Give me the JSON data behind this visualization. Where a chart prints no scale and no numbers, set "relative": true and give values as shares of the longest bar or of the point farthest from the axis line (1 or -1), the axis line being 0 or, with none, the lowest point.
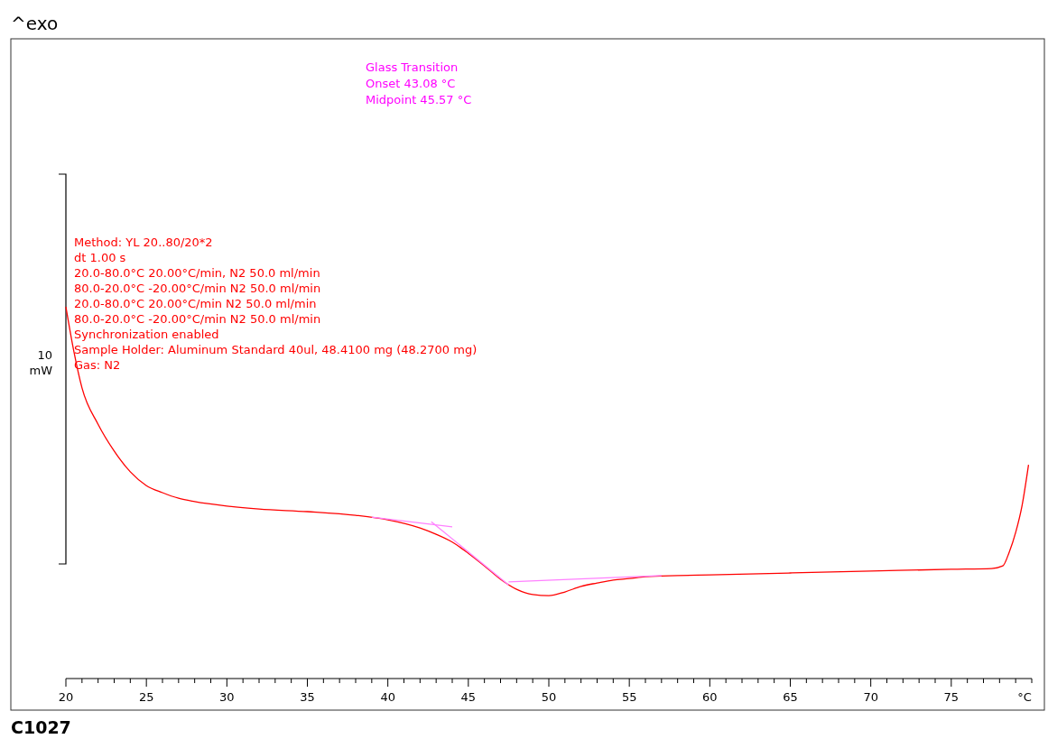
{
  "chart_data": {
    "type": "line",
    "title": "^exo",
    "xlabel": "°C",
    "ylabel": "10 mW",
    "relative": true,
    "grid": false,
    "marker": "none",
    "line_style": "solid",
    "xlim": [
      20,
      80
    ],
    "xticks": [
      20,
      {
        "value": 21,
        "label": null
      },
      {
        "value": 22,
        "label": null
      },
      {
        "value": 23,
        "label": null
      },
      {
        "value": 24,
        "label": null
      },
      25,
      {
        "value": 26,
        "label": null
      },
      {
        "value": 27,
        "label": null
      },
      {
        "value": 28,
        "label": null
      },
      {
        "value": 29,
        "label": null
      },
      30,
      {
        "value": 31,
        "label": null
      },
      {
        "value": 32,
        "label": null
      },
      {
        "value": 33,
        "label": null
      },
      {
        "value": 34,
        "label": null
      },
      35,
      {
        "value": 36,
        "label": null
      },
      {
        "value": 37,
        "label": null
      },
      {
        "value": 38,
        "label": null
      },
      {
        "value": 39,
        "label": null
      },
      40,
      {
        "value": 41,
        "label": null
      },
      {
        "value": 42,
        "label": null
      },
      {
        "value": 43,
        "label": null
      },
      {
        "value": 44,
        "label": null
      },
      45,
      {
        "value": 46,
        "label": null
      },
      {
        "value": 47,
        "label": null
      },
      {
        "value": 48,
        "label": null
      },
      {
        "value": 49,
        "label": null
      },
      50,
      {
        "value": 51,
        "label": null
      },
      {
        "value": 52,
        "label": null
      },
      {
        "value": 53,
        "label": null
      },
      {
        "value": 54,
        "label": null
      },
      55,
      {
        "value": 56,
        "label": null
      },
      {
        "value": 57,
        "label": null
      },
      {
        "value": 58,
        "label": null
      },
      {
        "value": 59,
        "label": null
      },
      60,
      {
        "value": 61,
        "label": null
      },
      {
        "value": 62,
        "label": null
      },
      {
        "value": 63,
        "label": null
      },
      {
        "value": 64,
        "label": null
      },
      65,
      {
        "value": 66,
        "label": null
      },
      {
        "value": 67,
        "label": null
      },
      {
        "value": 68,
        "label": null
      },
      {
        "value": 69,
        "label": null
      },
      70,
      {
        "value": 71,
        "label": null
      },
      {
        "value": 72,
        "label": null
      },
      {
        "value": 73,
        "label": null
      },
      {
        "value": 74,
        "label": null
      },
      75,
      {
        "value": 76,
        "label": null
      },
      {
        "value": 77,
        "label": null
      },
      {
        "value": 78,
        "label": null
      },
      {
        "value": 79,
        "label": null
      },
      {
        "value": 80,
        "label": null
      }
    ],
    "series": [
      {
        "color": "#ff0000",
        "x": [
          20,
          20.5,
          21,
          22,
          23,
          24,
          25,
          26,
          27,
          28,
          30,
          32,
          35,
          38,
          40,
          42,
          43,
          44,
          45,
          46,
          47,
          48,
          49,
          50,
          51,
          52,
          53,
          54,
          55,
          56,
          58,
          60,
          65,
          70,
          75,
          77.5,
          78.2,
          78.6,
          79,
          79.4,
          79.8
        ],
        "values": [
          1.0,
          0.879,
          0.782,
          0.684,
          0.612,
          0.556,
          0.519,
          0.5,
          0.485,
          0.476,
          0.464,
          0.456,
          0.449,
          0.439,
          0.427,
          0.405,
          0.388,
          0.367,
          0.337,
          0.303,
          0.267,
          0.24,
          0.226,
          0.223,
          0.233,
          0.248,
          0.257,
          0.265,
          0.269,
          0.274,
          0.277,
          0.279,
          0.284,
          0.289,
          0.294,
          0.296,
          0.303,
          0.34,
          0.393,
          0.466,
          0.575
        ]
      },
      {
        "color": "#ff80ff",
        "x": [
          39,
          44
        ],
        "values": [
          0.434,
          0.408
        ]
      },
      {
        "color": "#ff80ff",
        "x": [
          42.7,
          47.5
        ],
        "values": [
          0.422,
          0.252
        ]
      },
      {
        "color": "#ff80ff",
        "x": [
          47.5,
          57
        ],
        "values": [
          0.26,
          0.277
        ]
      }
    ],
    "annotations": [
      "Glass Transition",
      "Onset 43.08 °C",
      "Midpoint 45.57 °C",
      "Method: YL 20..80/20*2",
      "dt 1.00 s",
      "20.0-80.0°C 20.00°C/min, N2 50.0 ml/min",
      "80.0-20.0°C -20.00°C/min N2 50.0 ml/min",
      "20.0-80.0°C 20.00°C/min N2 50.0 ml/min",
      "80.0-20.0°C -20.00°C/min N2 50.0 ml/min",
      "Synchronization enabled",
      "Sample Holder: Aluminum Standard 40ul, 48.4100 mg (48.2700 mg)",
      "Gas: N2",
      "C1027"
    ]
  }
}
